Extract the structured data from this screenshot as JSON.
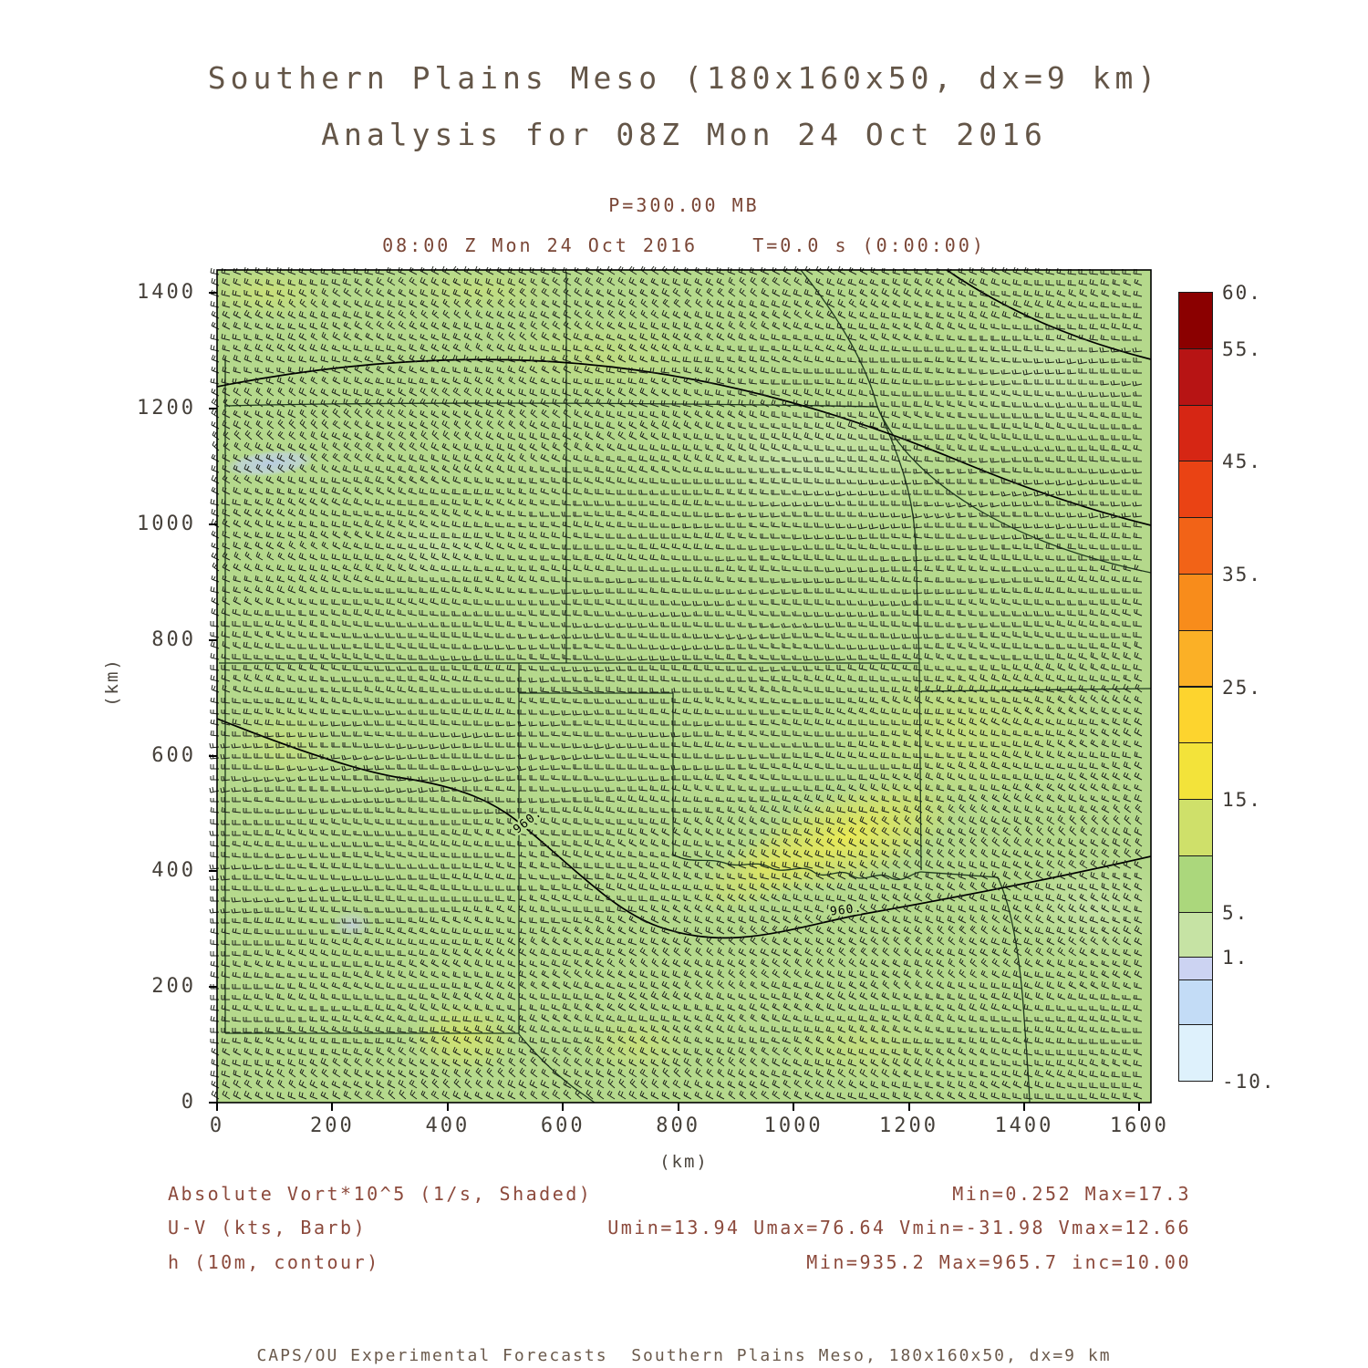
{
  "title": {
    "line1": "Southern Plains Meso (180x160x50, dx=9 km)",
    "line2": "Analysis for 08Z Mon 24 Oct 2016"
  },
  "plot_header": {
    "pressure_level": "P=300.00 MB",
    "time_line": "08:00 Z Mon 24 Oct 2016    T=0.0 s (0:00:00)"
  },
  "axes": {
    "x": {
      "label": "(km)",
      "ticks": [
        0,
        200,
        400,
        600,
        800,
        1000,
        1200,
        1400,
        1600
      ],
      "range": [
        0,
        1620
      ]
    },
    "y": {
      "label": "(km)",
      "ticks": [
        0,
        200,
        400,
        600,
        800,
        1000,
        1200,
        1400
      ],
      "range": [
        0,
        1440
      ]
    }
  },
  "colorbar": {
    "cells": [
      {
        "from": 55,
        "to": 60,
        "color": "#8b0000"
      },
      {
        "from": 50,
        "to": 55,
        "color": "#b71414"
      },
      {
        "from": 45,
        "to": 50,
        "color": "#d62614"
      },
      {
        "from": 40,
        "to": 45,
        "color": "#ea4314"
      },
      {
        "from": 35,
        "to": 40,
        "color": "#f26317"
      },
      {
        "from": 30,
        "to": 35,
        "color": "#f88c1b"
      },
      {
        "from": 25,
        "to": 30,
        "color": "#fbb026"
      },
      {
        "from": 20,
        "to": 25,
        "color": "#fdd42e"
      },
      {
        "from": 15,
        "to": 20,
        "color": "#f3e33a"
      },
      {
        "from": 10,
        "to": 15,
        "color": "#cfe06a"
      },
      {
        "from": 5,
        "to": 10,
        "color": "#abd77c"
      },
      {
        "from": 1,
        "to": 5,
        "color": "#c6e3a4"
      },
      {
        "from": -1,
        "to": 1,
        "color": "#ccd3f2"
      },
      {
        "from": -5,
        "to": -1,
        "color": "#c3dcf6"
      },
      {
        "from": -10,
        "to": -5,
        "color": "#def1fc"
      }
    ],
    "tick_labels": [
      {
        "text": "60.",
        "value": 60
      },
      {
        "text": "55.",
        "value": 55
      },
      {
        "text": "45.",
        "value": 45
      },
      {
        "text": "35.",
        "value": 35
      },
      {
        "text": "25.",
        "value": 25
      },
      {
        "text": "15.",
        "value": 15
      },
      {
        "text": "5.",
        "value": 5
      },
      {
        "text": "1.",
        "value": 1
      },
      {
        "text": "-10.",
        "value": -10
      }
    ]
  },
  "map": {
    "contour_labels": [
      "960.",
      "960."
    ]
  },
  "legend_rows": [
    {
      "left": "Absolute Vort*10^5 (1/s, Shaded)",
      "right": "Min=0.252 Max=17.3"
    },
    {
      "left": "U-V (kts, Barb)",
      "right": "Umin=13.94 Umax=76.64 Vmin=-31.98 Vmax=12.66"
    },
    {
      "left": "h (10m, contour)",
      "right": "Min=935.2 Max=965.7 inc=10.00"
    }
  ],
  "footer": "CAPS/OU Experimental Forecasts  Southern Plains Meso, 180x160x50, dx=9 km",
  "chart_data": {
    "type": "heatmap",
    "title": "Southern Plains Meso (180x160x50, dx=9 km)",
    "subtitle": "Analysis for 08Z Mon 24 Oct 2016",
    "pressure_level_mb": 300.0,
    "valid_time": "08:00 Z Mon 24 Oct 2016, T=0.0 s (0:00:00)",
    "xlabel": "(km)",
    "ylabel": "(km)",
    "xlim": [
      0,
      1620
    ],
    "ylim": [
      0,
      1440
    ],
    "x_ticks": [
      0,
      200,
      400,
      600,
      800,
      1000,
      1200,
      1400,
      1600
    ],
    "y_ticks": [
      0,
      200,
      400,
      600,
      800,
      1000,
      1200,
      1400
    ],
    "fields": [
      {
        "name": "Absolute Vort*10^5",
        "units": "1/s",
        "style": "shaded",
        "min": 0.252,
        "max": 17.3
      },
      {
        "name": "U-V wind",
        "units": "kts",
        "style": "barb",
        "umin": 13.94,
        "umax": 76.64,
        "vmin": -31.98,
        "vmax": 12.66
      },
      {
        "name": "h",
        "units": "10m",
        "style": "contour",
        "min": 935.2,
        "max": 965.7,
        "interval": 10.0,
        "labeled_contour_values": [
          960
        ]
      }
    ],
    "colorbar_levels": [
      -10,
      -5,
      -1,
      1,
      5,
      10,
      15,
      20,
      25,
      30,
      35,
      40,
      45,
      50,
      55,
      60
    ],
    "colorbar_tick_labels": [
      "60.",
      "55.",
      "45.",
      "35.",
      "25.",
      "15.",
      "5.",
      "1.",
      "-10."
    ],
    "shading_observation": "Field mostly 5-15 (greens) across domain; local yellow maxima ~15-17 near Red River / south-central Oklahoma and along bottom edge; pale blue (<1) patches in far northwest corner"
  }
}
